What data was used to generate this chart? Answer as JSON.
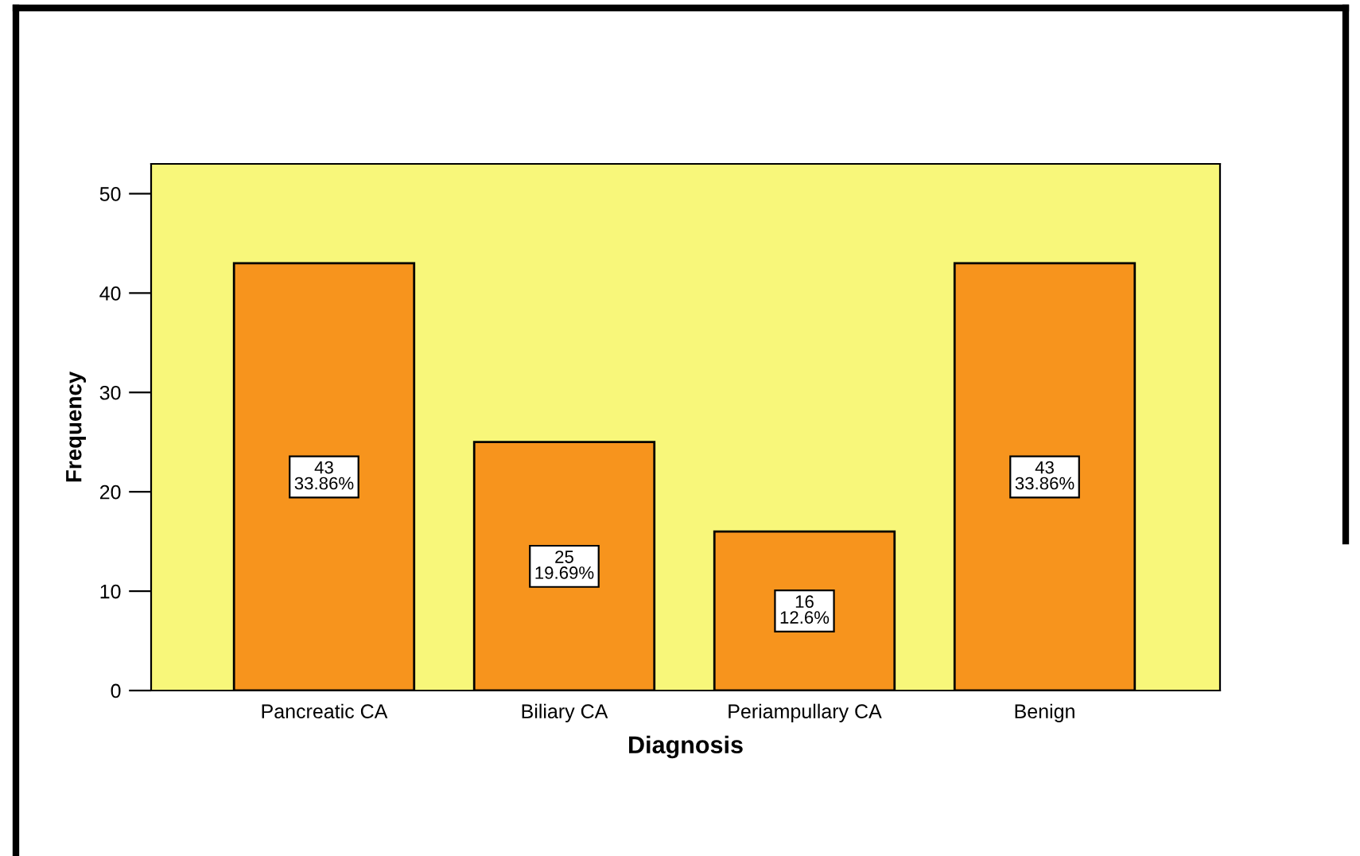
{
  "chart_data": {
    "type": "bar",
    "xlabel": "Diagnosis",
    "ylabel": "Frequency",
    "categories": [
      "Pancreatic CA",
      "Biliary CA",
      "Periampullary CA",
      "Benign"
    ],
    "values": [
      43,
      25,
      16,
      43
    ],
    "value_labels": [
      "43\n33.86%",
      "25\n19.69%",
      "16\n12.6%",
      "43\n33.86%"
    ],
    "color": "#f7941d",
    "ylim": [
      0,
      53
    ],
    "yticks": [
      0,
      10,
      20,
      30,
      40,
      50
    ],
    "grid": false
  }
}
